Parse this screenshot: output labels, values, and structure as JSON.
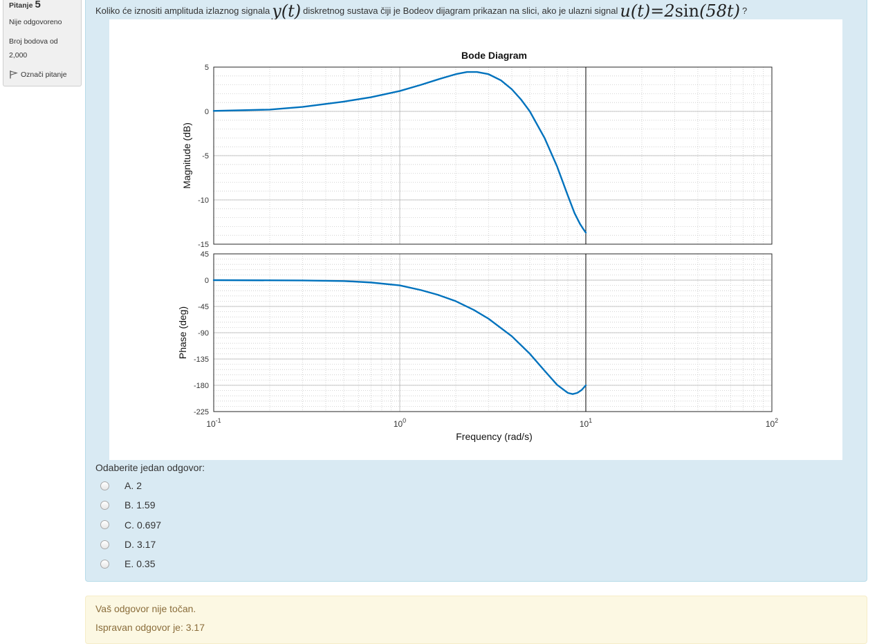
{
  "question_info": {
    "label": "Pitanje",
    "number": "5",
    "state": "Nije odgovoreno",
    "grade_line1": "Broj bodova od",
    "grade_line2": "2,000",
    "flag_label": "Označi pitanje"
  },
  "question": {
    "text_part1": "Koliko će iznositi amplituda izlaznog signala",
    "math1": "y(t)",
    "text_part2": "diskretnog sustava čiji je Bodeov dijagram prikazan na slici, ako je ulazni signal",
    "math2_lhs": "u(t)=2",
    "math2_fn": "sin",
    "math2_arg": "(58t)",
    "text_end": "?"
  },
  "chart_data": {
    "type": "line",
    "title": "Bode Diagram",
    "xlabel": "Frequency  (rad/s)",
    "x_scale": "log",
    "xlim": [
      0.1,
      100
    ],
    "x_ticks": [
      {
        "base": "10",
        "exp": "-1"
      },
      {
        "base": "10",
        "exp": "0"
      },
      {
        "base": "10",
        "exp": "1"
      },
      {
        "base": "10",
        "exp": "2"
      }
    ],
    "grid": true,
    "line_color": "#0072bd",
    "nyquist_marker": 10,
    "magnitude": {
      "ylabel": "Magnitude (dB)",
      "ylim": [
        -15,
        5
      ],
      "y_ticks": [
        "5",
        "0",
        "-5",
        "-10",
        "-15"
      ],
      "series": {
        "x": [
          0.1,
          0.2,
          0.3,
          0.5,
          0.7,
          1.0,
          1.3,
          1.6,
          2.0,
          2.3,
          2.6,
          3.0,
          3.5,
          4.0,
          4.5,
          5.0,
          6.0,
          7.0,
          8.0,
          8.7,
          9.3,
          9.7,
          10.0
        ],
        "y": [
          0.05,
          0.2,
          0.5,
          1.1,
          1.6,
          2.3,
          3.0,
          3.6,
          4.2,
          4.45,
          4.45,
          4.2,
          3.5,
          2.5,
          1.3,
          0.0,
          -3.0,
          -6.2,
          -9.5,
          -11.5,
          -12.7,
          -13.3,
          -13.7
        ]
      }
    },
    "phase": {
      "ylabel": "Phase (deg)",
      "ylim": [
        -225,
        45
      ],
      "y_ticks": [
        "45",
        "0",
        "-45",
        "-90",
        "-135",
        "-180",
        "-225"
      ],
      "series": {
        "x": [
          0.1,
          0.3,
          0.5,
          0.7,
          1.0,
          1.3,
          1.6,
          2.0,
          2.5,
          3.0,
          4.0,
          5.0,
          6.0,
          7.0,
          8.0,
          8.5,
          9.0,
          9.5,
          10.0
        ],
        "y": [
          0,
          -0.5,
          -1.5,
          -4,
          -9,
          -17,
          -25,
          -36,
          -51,
          -66,
          -96,
          -126,
          -155,
          -179,
          -193,
          -195,
          -193,
          -188,
          -180
        ]
      }
    }
  },
  "prompt": "Odaberite jedan odgovor:",
  "answers": [
    {
      "letter": "A.",
      "value": "2"
    },
    {
      "letter": "B.",
      "value": "1.59"
    },
    {
      "letter": "C.",
      "value": "0.697"
    },
    {
      "letter": "D.",
      "value": "3.17"
    },
    {
      "letter": "E.",
      "value": "0.35"
    }
  ],
  "feedback": {
    "line1": "Vaš odgovor nije točan.",
    "line2": "Ispravan odgovor je: 3.17"
  }
}
